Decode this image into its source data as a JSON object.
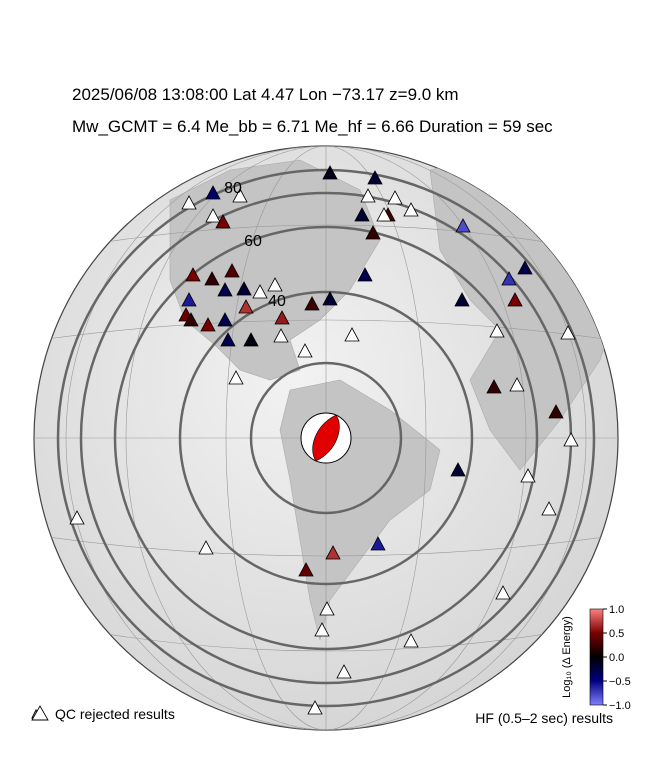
{
  "header": {
    "line1": "2025/06/08  13:08:00   Lat 4.47    Lon −73.17   z=9.0 km",
    "line2": "Mw_GCMT = 6.4   Me_bb = 6.71   Me_hf = 6.66   Duration = 59 sec"
  },
  "map": {
    "ring_labels": [
      40,
      60,
      80
    ],
    "stations": [
      -0.1,
      -0.2,
      -0.4,
      -0.2,
      0.3,
      0.2,
      0.5,
      -0.8,
      -0.3,
      -0.7,
      0.5,
      -0.2,
      -0.3,
      0.5,
      0.2,
      0.35,
      -0.6,
      -0.3,
      -0.2,
      0.7,
      0.45,
      0.2,
      0.5,
      -0.3,
      0.6,
      0.25,
      -0.2,
      -0.3,
      -0.05,
      0.2,
      0.2,
      -0.2,
      0.7,
      -0.6,
      0.4,
      null,
      null,
      null,
      null,
      null,
      null,
      null,
      null,
      null,
      null,
      null,
      null,
      null,
      null,
      null,
      null,
      null,
      null,
      null,
      null,
      null,
      null,
      null,
      null,
      null,
      null,
      null
    ]
  },
  "colorbar": {
    "label": "Log₁₀ (Δ Energy)",
    "lim": [
      -1,
      1
    ],
    "ticks": [
      {
        "value": 1,
        "label": "1.0"
      },
      0.5,
      {
        "value": 0,
        "label": "0.0"
      },
      {
        "value": -0.5,
        "label": "−0.5"
      },
      {
        "value": -1,
        "label": "−1.0"
      }
    ]
  },
  "legend": {
    "rejected": "QC rejected results",
    "results": "HF (0.5–2 sec) results"
  }
}
